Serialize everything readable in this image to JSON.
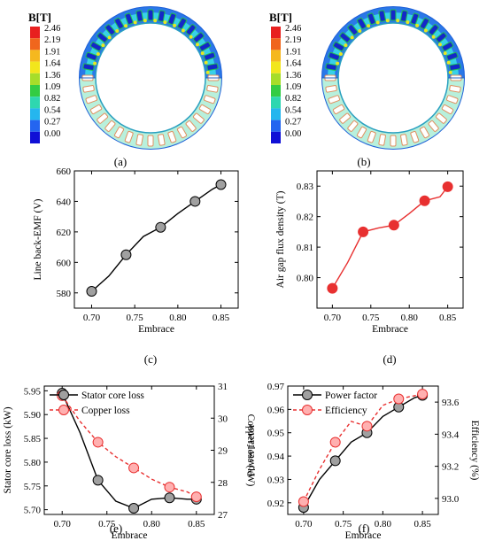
{
  "panels": [
    {
      "caption": "(a)",
      "colorbar": {
        "title": "B[T]",
        "ticks": [
          "2.46",
          "2.19",
          "1.91",
          "1.64",
          "1.36",
          "1.09",
          "0.82",
          "0.54",
          "0.27",
          "0.00"
        ],
        "colors": [
          "#e8201f",
          "#f0661d",
          "#f5b81f",
          "#f2e61c",
          "#a6dd2a",
          "#33cc44",
          "#2ed7b0",
          "#25b6ee",
          "#2465f0",
          "#1010d6"
        ]
      }
    },
    {
      "caption": "(b)",
      "colorbar": {
        "title": "B[T]",
        "ticks": [
          "2.46",
          "2.19",
          "1.91",
          "1.64",
          "1.36",
          "1.09",
          "0.82",
          "0.54",
          "0.27",
          "0.00"
        ],
        "colors": [
          "#e8201f",
          "#f0661d",
          "#f5b81f",
          "#f2e61c",
          "#a6dd2a",
          "#33cc44",
          "#2ed7b0",
          "#25b6ee",
          "#2465f0",
          "#1010d6"
        ]
      }
    }
  ],
  "chart_data": [
    {
      "id": "c",
      "caption": "(c)",
      "type": "line",
      "xlabel": "Embrace",
      "ylabel": "Line back-EMF (V)",
      "xlim": [
        0.68,
        0.87
      ],
      "ylim": [
        570,
        660
      ],
      "xticks": [
        "0.70",
        "0.75",
        "0.80",
        "0.85"
      ],
      "yticks": [
        "580",
        "600",
        "620",
        "640",
        "660"
      ],
      "series": [
        {
          "color": "#000000",
          "marker": "#a0a0a0",
          "dashed": false,
          "x": [
            0.7,
            0.74,
            0.78,
            0.82,
            0.85
          ],
          "y": [
            581,
            605,
            623,
            640,
            651
          ],
          "line_x": [
            0.7,
            0.72,
            0.74,
            0.76,
            0.78,
            0.8,
            0.82,
            0.84,
            0.85
          ],
          "line_y": [
            581,
            591,
            605,
            617,
            623,
            632,
            640,
            648,
            651
          ]
        }
      ]
    },
    {
      "id": "d",
      "caption": "(d)",
      "type": "line",
      "xlabel": "Embrace",
      "ylabel": "Air gap flux density (T)",
      "xlim": [
        0.68,
        0.87
      ],
      "ylim": [
        0.79,
        0.835
      ],
      "xticks": [
        "0.70",
        "0.75",
        "0.80",
        "0.85"
      ],
      "yticks": [
        "0.80",
        "0.81",
        "0.82",
        "0.83"
      ],
      "series": [
        {
          "color": "#e83030",
          "marker": "#e83030",
          "dashed": false,
          "x": [
            0.7,
            0.74,
            0.78,
            0.82,
            0.85
          ],
          "y": [
            0.7965,
            0.815,
            0.8172,
            0.8252,
            0.8298
          ],
          "line_x": [
            0.7,
            0.72,
            0.74,
            0.76,
            0.78,
            0.8,
            0.82,
            0.84,
            0.85
          ],
          "line_y": [
            0.7965,
            0.805,
            0.815,
            0.8163,
            0.8172,
            0.821,
            0.8252,
            0.8265,
            0.8298
          ]
        }
      ]
    },
    {
      "id": "e",
      "caption": "(e)",
      "type": "line",
      "xlabel": "Embrace",
      "ylabel": "Stator core loss (kW)",
      "ylabel2": "Copper loss (kW)",
      "xlim": [
        0.68,
        0.87
      ],
      "ylim": [
        5.69,
        5.96
      ],
      "ylim2": [
        27,
        31
      ],
      "xticks": [
        "0.70",
        "0.75",
        "0.80",
        "0.85"
      ],
      "yticks": [
        "5.70",
        "5.75",
        "5.80",
        "5.85",
        "5.90",
        "5.95"
      ],
      "yticks2": [
        "27",
        "28",
        "29",
        "30",
        "31"
      ],
      "legend": [
        "Stator core loss",
        "Copper loss"
      ],
      "series": [
        {
          "name": "Stator core loss",
          "axis": "left",
          "color": "#000000",
          "marker": "#a0a0a0",
          "dashed": false,
          "x": [
            0.7,
            0.74,
            0.78,
            0.82,
            0.85
          ],
          "y": [
            5.945,
            5.762,
            5.703,
            5.725,
            5.722
          ],
          "line_x": [
            0.7,
            0.72,
            0.74,
            0.76,
            0.78,
            0.8,
            0.82,
            0.84,
            0.85
          ],
          "line_y": [
            5.945,
            5.862,
            5.762,
            5.718,
            5.703,
            5.722,
            5.725,
            5.722,
            5.722
          ]
        },
        {
          "name": "Copper loss",
          "axis": "right",
          "color": "#e83030",
          "marker": "#ffb0b0",
          "dashed": true,
          "x": [
            0.7,
            0.74,
            0.78,
            0.82,
            0.85
          ],
          "y": [
            30.7,
            29.25,
            28.45,
            27.85,
            27.55
          ],
          "line_x": [
            0.7,
            0.72,
            0.74,
            0.76,
            0.78,
            0.8,
            0.82,
            0.84,
            0.85
          ],
          "line_y": [
            30.7,
            29.9,
            29.25,
            28.8,
            28.45,
            28.1,
            27.85,
            27.7,
            27.55
          ]
        }
      ]
    },
    {
      "id": "f",
      "caption": "(f)",
      "type": "line",
      "xlabel": "Embrace",
      "ylabel": "Power factor",
      "ylabel2": "Efficiency (%)",
      "xlim": [
        0.68,
        0.87
      ],
      "ylim": [
        0.915,
        0.97
      ],
      "ylim2": [
        92.9,
        93.7
      ],
      "xticks": [
        "0.70",
        "0.75",
        "0.80",
        "0.85"
      ],
      "yticks": [
        "0.92",
        "0.93",
        "0.94",
        "0.95",
        "0.96",
        "0.97"
      ],
      "yticks2": [
        "93.0",
        "93.2",
        "93.4",
        "93.6"
      ],
      "legend": [
        "Power factor",
        "Efficiency"
      ],
      "series": [
        {
          "name": "Power factor",
          "axis": "left",
          "color": "#000000",
          "marker": "#a0a0a0",
          "dashed": false,
          "x": [
            0.7,
            0.74,
            0.78,
            0.82,
            0.85
          ],
          "y": [
            0.918,
            0.938,
            0.95,
            0.961,
            0.966
          ],
          "line_x": [
            0.7,
            0.72,
            0.74,
            0.76,
            0.78,
            0.8,
            0.82,
            0.84,
            0.85
          ],
          "line_y": [
            0.918,
            0.93,
            0.938,
            0.946,
            0.95,
            0.957,
            0.961,
            0.965,
            0.966
          ]
        },
        {
          "name": "Efficiency",
          "axis": "right",
          "color": "#e83030",
          "marker": "#ffb0b0",
          "dashed": true,
          "x": [
            0.7,
            0.74,
            0.78,
            0.82,
            0.85
          ],
          "y": [
            92.98,
            93.35,
            93.45,
            93.62,
            93.65
          ],
          "line_x": [
            0.7,
            0.72,
            0.74,
            0.76,
            0.78,
            0.8,
            0.82,
            0.84,
            0.85
          ],
          "line_y": [
            92.98,
            93.18,
            93.35,
            93.48,
            93.45,
            93.58,
            93.62,
            93.64,
            93.65
          ]
        }
      ]
    }
  ]
}
